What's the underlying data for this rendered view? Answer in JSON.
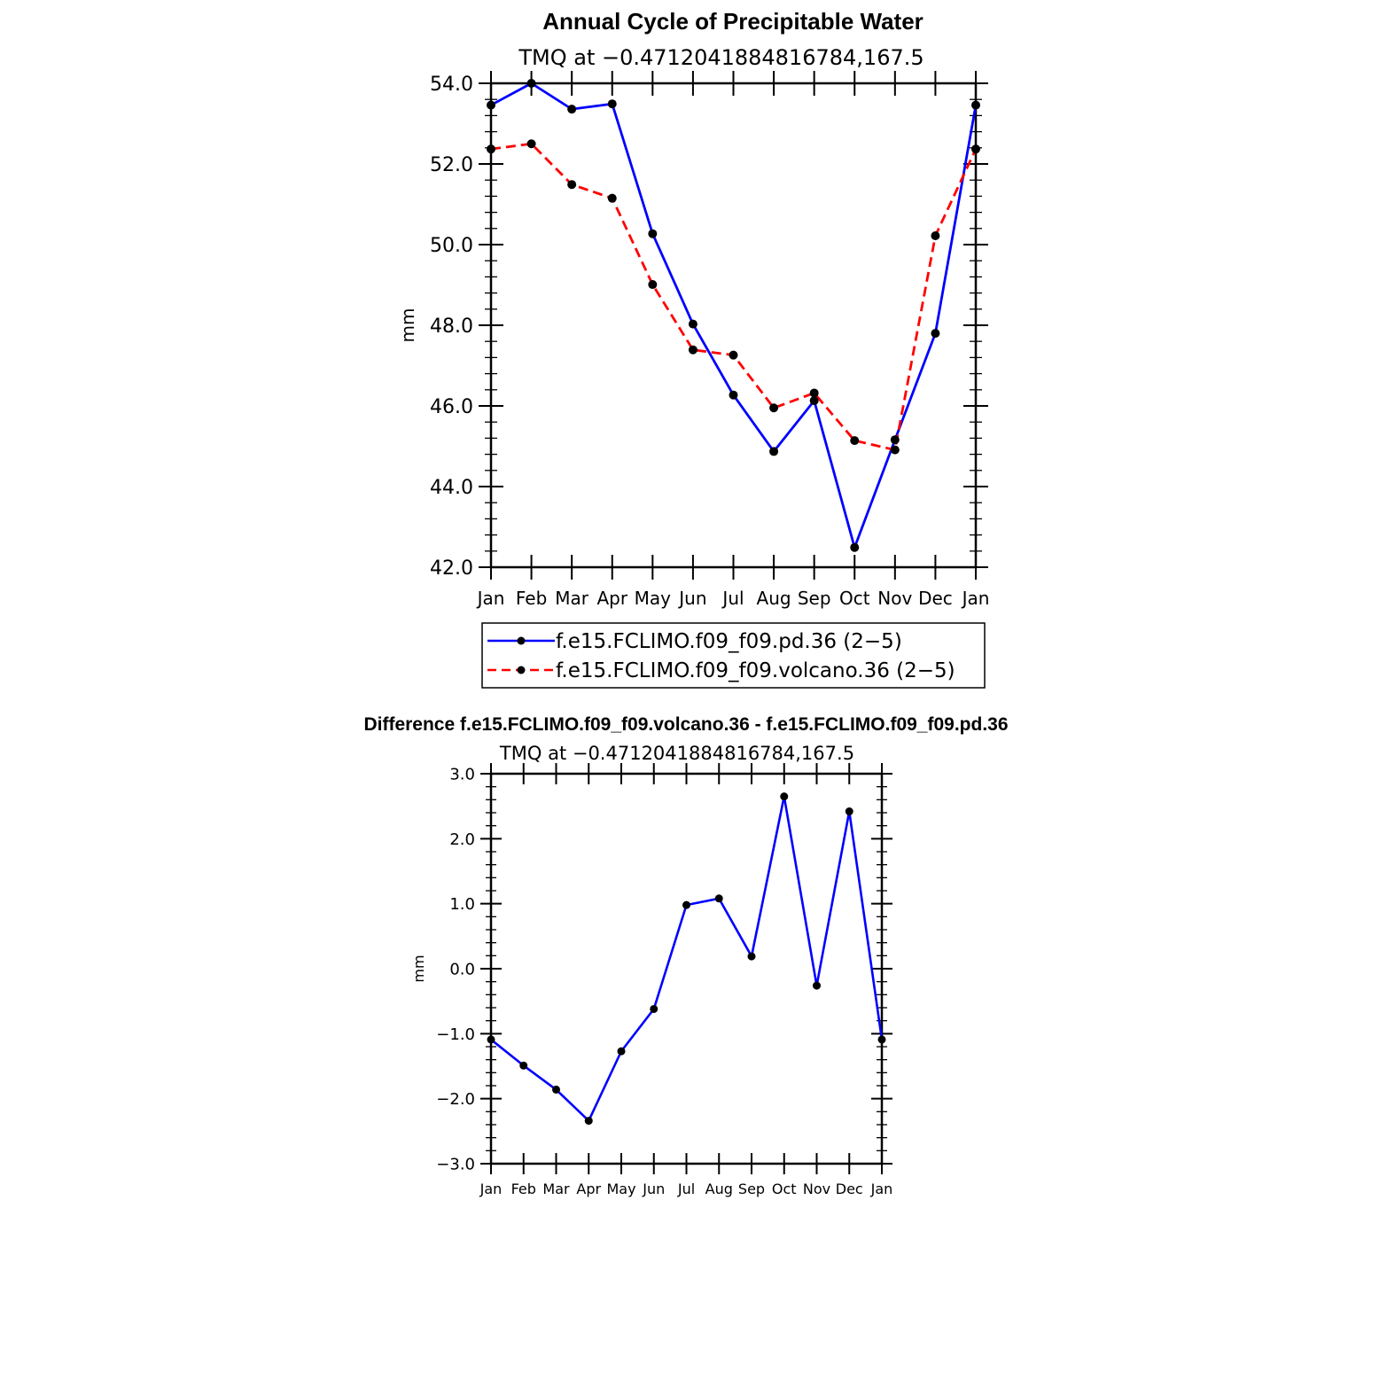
{
  "chart_data": [
    {
      "type": "line",
      "title": "Annual Cycle of Precipitable Water",
      "subtitle": "TMQ at −0.4712041884816784,167.5",
      "ylabel": "mm",
      "xlabel": "",
      "categories": [
        "Jan",
        "Feb",
        "Mar",
        "Apr",
        "May",
        "Jun",
        "Jul",
        "Aug",
        "Sep",
        "Oct",
        "Nov",
        "Dec",
        "Jan"
      ],
      "ylim": [
        42,
        54
      ],
      "yticks": [
        "42.0",
        "44.0",
        "46.0",
        "48.0",
        "50.0",
        "52.0",
        "54.0"
      ],
      "series": [
        {
          "name": "f.e15.FCLIMO.f09_f09.pd.36 (2−5)",
          "color": "#0000ff",
          "dash": "solid",
          "values": [
            53.46,
            54.0,
            53.36,
            53.49,
            50.27,
            48.03,
            46.27,
            44.87,
            46.13,
            42.49,
            45.16,
            47.8,
            53.46
          ]
        },
        {
          "name": "f.e15.FCLIMO.f09_f09.volcano.36 (2−5)",
          "color": "#ff0000",
          "dash": "dashed",
          "values": [
            52.37,
            52.5,
            51.49,
            51.15,
            49.01,
            47.39,
            47.26,
            45.95,
            46.32,
            45.14,
            44.91,
            50.22,
            52.37
          ]
        }
      ],
      "legend_position": "below"
    },
    {
      "type": "line",
      "title": "Difference f.e15.FCLIMO.f09_f09.volcano.36 - f.e15.FCLIMO.f09_f09.pd.36",
      "subtitle": "TMQ at −0.4712041884816784,167.5",
      "ylabel": "mm",
      "xlabel": "",
      "categories": [
        "Jan",
        "Feb",
        "Mar",
        "Apr",
        "May",
        "Jun",
        "Jul",
        "Aug",
        "Sep",
        "Oct",
        "Nov",
        "Dec",
        "Jan"
      ],
      "ylim": [
        -3,
        3
      ],
      "yticks": [
        "−3.0",
        "−2.0",
        "−1.0",
        "0.0",
        "1.0",
        "2.0",
        "3.0"
      ],
      "series": [
        {
          "color": "#0000ff",
          "dash": "solid",
          "values": [
            -1.09,
            -1.49,
            -1.86,
            -2.34,
            -1.27,
            -0.62,
            0.98,
            1.08,
            0.19,
            2.65,
            -0.26,
            2.42,
            -1.09
          ]
        }
      ]
    }
  ]
}
